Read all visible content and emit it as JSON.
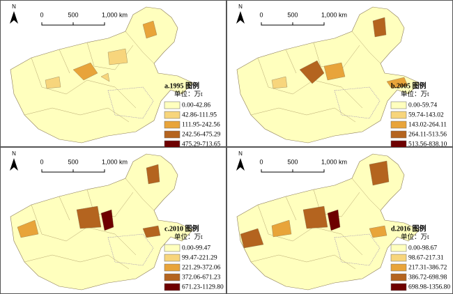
{
  "colors": [
    "#ffffbe",
    "#f7d57c",
    "#e8a43a",
    "#b4641f",
    "#6e0000"
  ],
  "panels": [
    {
      "north": "N",
      "scale": [
        "0",
        "500",
        "1,000 km"
      ],
      "legend_title": "a.1995 图例",
      "unit": "单位：万t",
      "classes": [
        "0.00-42.86",
        "42.86-111.95",
        "111.95-242.56",
        "242.56-475.29",
        "475.29-713.65"
      ]
    },
    {
      "north": "N",
      "scale": [
        "0",
        "500",
        "1,000 km"
      ],
      "legend_title": "b.2005 图例",
      "unit": "单位：万t",
      "classes": [
        "0.00-59.74",
        "59.74-143.02",
        "143.02-264.11",
        "264.11-513.56",
        "513.56-838.10"
      ]
    },
    {
      "north": "N",
      "scale": [
        "0",
        "500",
        "1,000 km"
      ],
      "legend_title": "c.2010 图例",
      "unit": "单位：万t",
      "classes": [
        "0.00-99.47",
        "99.47-221.29",
        "221.29-372.06",
        "372.06-671.23",
        "671.23-1129.80"
      ]
    },
    {
      "north": "N",
      "scale": [
        "0",
        "500",
        "1,000 km"
      ],
      "legend_title": "d.2016 图例",
      "unit": "单位：万t",
      "classes": [
        "0.00-98.67",
        "98.67-217.31",
        "217.31-386.72",
        "386.72-698.98",
        "698.98-1356.80"
      ]
    }
  ]
}
